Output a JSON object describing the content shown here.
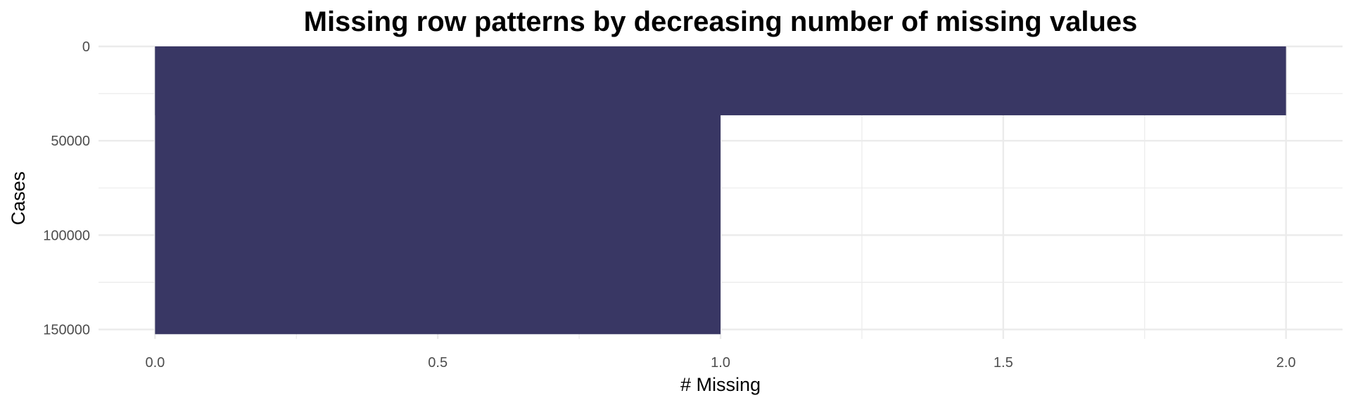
{
  "chart_data": {
    "type": "bar",
    "title": "Missing row patterns by decreasing number of missing values",
    "xlabel": "# Missing",
    "ylabel": "Cases",
    "y_reversed": true,
    "xlim": [
      -0.1,
      2.1
    ],
    "ylim": [
      0,
      155000
    ],
    "x_ticks": [
      0.0,
      0.5,
      1.0,
      1.5,
      2.0
    ],
    "x_tick_labels": [
      "0.0",
      "0.5",
      "1.0",
      "1.5",
      "2.0"
    ],
    "y_ticks": [
      0,
      50000,
      100000,
      150000
    ],
    "y_tick_labels": [
      "0",
      "50000",
      "100000",
      "150000"
    ],
    "grid": true,
    "bar_color": "#393764",
    "bars": [
      {
        "x_start": 0,
        "x_end": 2,
        "cases": 36500
      },
      {
        "x_start": 0,
        "x_end": 1,
        "cases": 152500
      }
    ]
  }
}
